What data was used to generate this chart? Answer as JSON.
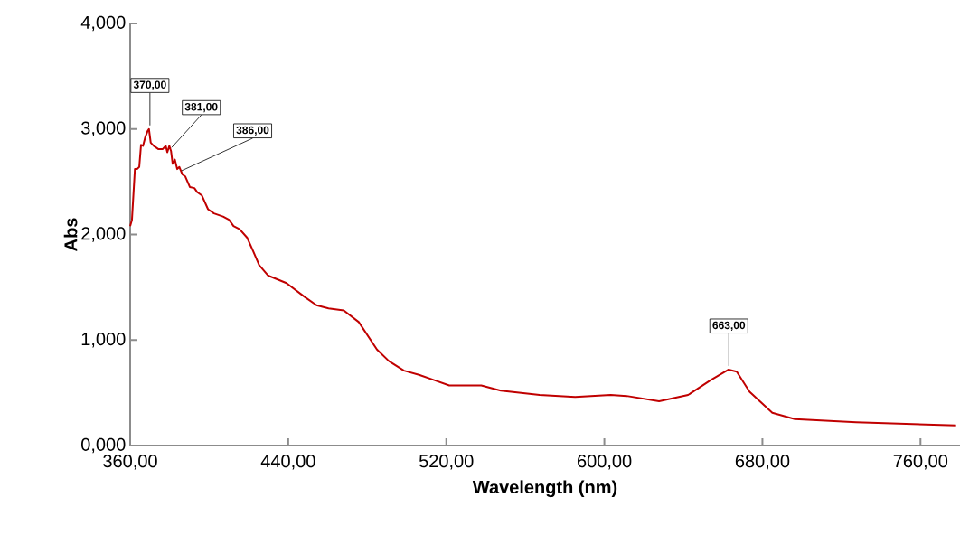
{
  "chart_data": {
    "type": "line",
    "xlabel": "Wavelength (nm)",
    "ylabel": "Abs",
    "xlim": [
      360,
      780
    ],
    "ylim": [
      0,
      4
    ],
    "xticks": [
      {
        "value": 360,
        "label": "360,00"
      },
      {
        "value": 440,
        "label": "440,00"
      },
      {
        "value": 520,
        "label": "520,00"
      },
      {
        "value": 600,
        "label": "600,00"
      },
      {
        "value": 680,
        "label": "680,00"
      },
      {
        "value": 760,
        "label": "760,00"
      }
    ],
    "yticks": [
      {
        "value": 0,
        "label": "0,000"
      },
      {
        "value": 1,
        "label": "1,000"
      },
      {
        "value": 2,
        "label": "2,000"
      },
      {
        "value": 3,
        "label": "3,000"
      },
      {
        "value": 4,
        "label": "4,000"
      }
    ],
    "grid": false,
    "marker": "none",
    "line_style": "solid",
    "series": [
      {
        "color": "#c00000",
        "x": [
          360,
          360.9,
          362.4,
          363.5,
          364.6,
          365.5,
          366.5,
          367.6,
          368.8,
          369.5,
          370.4,
          371.9,
          374.2,
          376.5,
          378,
          378.8,
          379.8,
          380.7,
          381.5,
          382.6,
          383.8,
          384.9,
          386.4,
          387.9,
          390.2,
          392.5,
          394,
          396.3,
          399.4,
          402.4,
          407,
          410,
          412.3,
          415.4,
          419.2,
          422.3,
          425.3,
          429.9,
          439.1,
          448.2,
          454.3,
          460.4,
          468.1,
          475.7,
          484.9,
          491,
          498.6,
          506.2,
          513.9,
          521.5,
          537.7,
          547.6,
          567.2,
          585.2,
          603.2,
          611.3,
          627.7,
          642.4,
          653.8,
          662.9,
          667,
          673.5,
          685,
          696.4,
          727.4,
          778
        ],
        "values": [
          2.08,
          2.14,
          2.62,
          2.62,
          2.64,
          2.85,
          2.84,
          2.92,
          2.98,
          3.0,
          2.87,
          2.84,
          2.81,
          2.81,
          2.84,
          2.78,
          2.84,
          2.79,
          2.67,
          2.71,
          2.62,
          2.64,
          2.57,
          2.55,
          2.45,
          2.44,
          2.4,
          2.37,
          2.24,
          2.2,
          2.17,
          2.14,
          2.08,
          2.05,
          1.97,
          1.84,
          1.71,
          1.61,
          1.54,
          1.41,
          1.33,
          1.3,
          1.28,
          1.17,
          0.91,
          0.8,
          0.71,
          0.67,
          0.62,
          0.57,
          0.57,
          0.52,
          0.48,
          0.46,
          0.48,
          0.47,
          0.42,
          0.48,
          0.62,
          0.72,
          0.7,
          0.51,
          0.31,
          0.25,
          0.22,
          0.19
        ]
      }
    ],
    "annotations": [
      {
        "text": "370,00",
        "x": 370,
        "y": 3.0
      },
      {
        "text": "381,00",
        "x": 381,
        "y": 2.79
      },
      {
        "text": "386,00",
        "x": 386,
        "y": 2.57
      },
      {
        "text": "663,00",
        "x": 663,
        "y": 0.72
      }
    ]
  }
}
